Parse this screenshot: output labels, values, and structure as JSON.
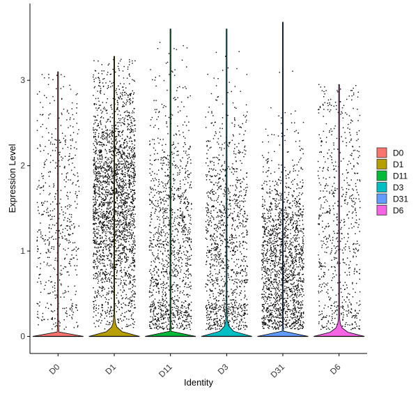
{
  "chart_data": {
    "type": "violin",
    "xlabel": "Identity",
    "ylabel": "Expression Level",
    "ylim": [
      -0.2,
      3.9
    ],
    "yticks": [
      0,
      1,
      2,
      3
    ],
    "grid": false,
    "legend_position": "right",
    "points_overlay": true,
    "categories": [
      "D0",
      "D1",
      "D11",
      "D3",
      "D31",
      "D6"
    ],
    "series": [
      {
        "name": "D0",
        "color": "#F8766D",
        "max": 3.1,
        "max_violin_width": 0.03,
        "point_median": 1.3,
        "point_q_low": 0.7,
        "point_q_high": 1.9,
        "point_count": 550,
        "zero_spike_width": 0.45
      },
      {
        "name": "D1",
        "color": "#B79F00",
        "max": 3.28,
        "max_violin_width": 0.45,
        "point_median": 1.55,
        "point_q_low": 1.0,
        "point_q_high": 2.0,
        "point_count": 2500,
        "zero_spike_width": 0.45
      },
      {
        "name": "D11",
        "color": "#00BA38",
        "max": 3.6,
        "max_violin_width": 0.02,
        "point_median": 1.0,
        "point_q_low": 0.45,
        "point_q_high": 1.6,
        "point_count": 1300,
        "zero_spike_width": 0.45
      },
      {
        "name": "D3",
        "color": "#00BFC4",
        "max": 3.6,
        "max_violin_width": 0.45,
        "point_median": 1.05,
        "point_q_low": 0.5,
        "point_q_high": 1.6,
        "point_count": 1200,
        "zero_spike_width": 0.45
      },
      {
        "name": "D31",
        "color": "#619CFF",
        "max": 3.68,
        "max_violin_width": 0.02,
        "point_median": 0.85,
        "point_q_low": 0.55,
        "point_q_high": 1.4,
        "point_count": 1700,
        "zero_spike_width": 0.45
      },
      {
        "name": "D6",
        "color": "#F564E3",
        "max": 2.95,
        "max_violin_width": 0.45,
        "point_median": 1.2,
        "point_q_low": 0.6,
        "point_q_high": 1.9,
        "point_count": 700,
        "zero_spike_width": 0.45
      }
    ]
  }
}
